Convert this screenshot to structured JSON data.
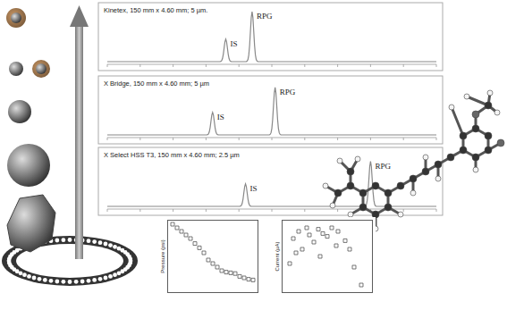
{
  "chromatograms": {
    "xlim": [
      0,
      10
    ],
    "height_lim": [
      0,
      1
    ],
    "tick_labels": false,
    "panels": [
      {
        "label": "Kinetex, 150 mm x 4.60 mm; 5 µm.",
        "peaks": [
          {
            "name": "IS",
            "time": 3.6,
            "height": 0.45
          },
          {
            "name": "RPG",
            "time": 4.4,
            "height": 1.0
          }
        ]
      },
      {
        "label": "X Bridge, 150 mm x 4.60 mm; 5 µm",
        "peaks": [
          {
            "name": "IS",
            "time": 3.2,
            "height": 0.45
          },
          {
            "name": "RPG",
            "time": 5.1,
            "height": 0.95
          }
        ]
      },
      {
        "label": "X Select HSS T3, 150 mm x 4.60 mm; 2.5 µm",
        "peaks": [
          {
            "name": "IS",
            "time": 4.2,
            "height": 0.45
          },
          {
            "name": "RPG",
            "time": 8.0,
            "height": 0.9
          }
        ]
      }
    ]
  },
  "chart_data": [
    {
      "type": "scatter",
      "y_title": "Pressure (psi)",
      "marker": "square-open",
      "color": "#555555",
      "tick_labels": false,
      "xlim": [
        0,
        1
      ],
      "ylim": [
        0,
        1
      ],
      "x": [
        0.05,
        0.1,
        0.15,
        0.2,
        0.25,
        0.3,
        0.35,
        0.4,
        0.45,
        0.5,
        0.55,
        0.6,
        0.65,
        0.7,
        0.75,
        0.8,
        0.85,
        0.9,
        0.95
      ],
      "values": [
        0.95,
        0.9,
        0.85,
        0.8,
        0.75,
        0.68,
        0.62,
        0.55,
        0.45,
        0.4,
        0.35,
        0.3,
        0.28,
        0.27,
        0.26,
        0.22,
        0.2,
        0.18,
        0.17
      ]
    },
    {
      "type": "scatter",
      "y_title": "Current (µA)",
      "marker": "square-open",
      "color": "#555555",
      "tick_labels": false,
      "xlim": [
        0,
        1
      ],
      "ylim": [
        0,
        1
      ],
      "x": [
        0.08,
        0.12,
        0.18,
        0.22,
        0.27,
        0.3,
        0.35,
        0.4,
        0.45,
        0.5,
        0.55,
        0.6,
        0.62,
        0.7,
        0.75,
        0.8,
        0.88,
        0.15,
        0.42
      ],
      "values": [
        0.4,
        0.75,
        0.85,
        0.6,
        0.9,
        0.8,
        0.7,
        0.88,
        0.82,
        0.78,
        0.9,
        0.65,
        0.85,
        0.72,
        0.6,
        0.35,
        0.1,
        0.55,
        0.5
      ]
    }
  ]
}
